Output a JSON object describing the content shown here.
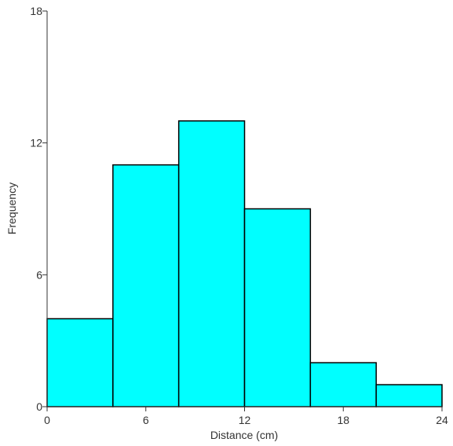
{
  "chart_data": {
    "type": "histogram",
    "xlabel": "Distance (cm)",
    "ylabel": "Frequency",
    "bins": [
      0,
      4,
      8,
      12,
      16,
      20,
      24
    ],
    "values": [
      4,
      11,
      13,
      9,
      2,
      1
    ],
    "color": "#00ffff",
    "xlim": [
      0,
      24
    ],
    "xticks": [
      0,
      6,
      12,
      18,
      24
    ],
    "ylim": [
      0,
      18
    ],
    "yticks": [
      0,
      6,
      12,
      18
    ]
  }
}
